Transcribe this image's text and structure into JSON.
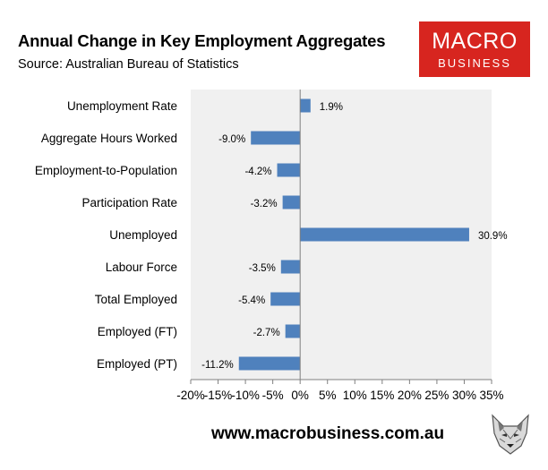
{
  "header": {
    "title": "Annual Change in Key Employment Aggregates",
    "subtitle": "Source: Australian Bureau of Statistics"
  },
  "logo": {
    "line1": "MACRO",
    "line2": "BUSINESS",
    "bg_color": "#d7251f"
  },
  "footer": {
    "url": "www.macrobusiness.com.au",
    "icon": "fox-icon"
  },
  "chart_data": {
    "type": "bar",
    "orientation": "horizontal",
    "categories": [
      "Unemployment Rate",
      "Aggregate Hours Worked",
      "Employment-to-Population",
      "Participation Rate",
      "Unemployed",
      "Labour Force",
      "Total Employed",
      "Employed (FT)",
      "Employed (PT)"
    ],
    "values": [
      1.9,
      -9.0,
      -4.2,
      -3.2,
      30.9,
      -3.5,
      -5.4,
      -2.7,
      -11.2
    ],
    "data_labels": [
      "1.9%",
      "-9.0%",
      "-4.2%",
      "-3.2%",
      "30.9%",
      "-3.5%",
      "-5.4%",
      "-2.7%",
      "-11.2%"
    ],
    "xlim": [
      -20,
      35
    ],
    "xticks": [
      -20,
      -15,
      -10,
      -5,
      0,
      5,
      10,
      15,
      20,
      25,
      30,
      35
    ],
    "xtick_labels": [
      "-20%",
      "-15%",
      "-10%",
      "-5%",
      "0%",
      "5%",
      "10%",
      "15%",
      "20%",
      "25%",
      "30%",
      "35%"
    ],
    "bar_color": "#4f81bd",
    "plot_bg": "#f0f0f0",
    "grid": false,
    "legend": "none"
  }
}
